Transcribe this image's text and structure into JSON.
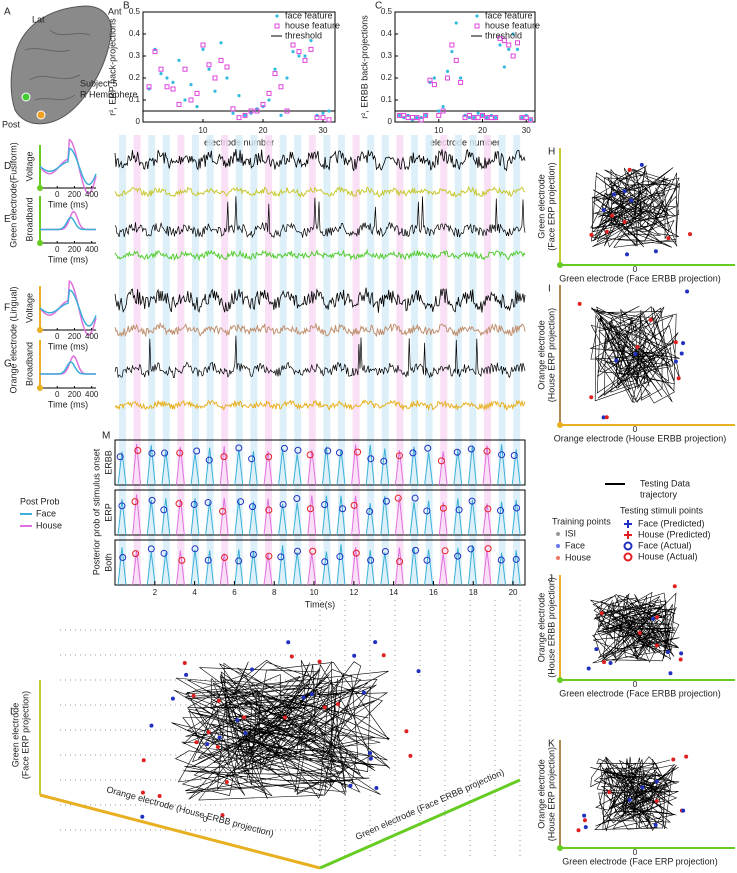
{
  "chart_data": [
    {
      "type": "scatter",
      "letter": "B",
      "ylabel": "r², ERP back-projections",
      "xlabel": "electrode number",
      "xlim": [
        0,
        32
      ],
      "xticks": [
        10,
        20,
        30
      ],
      "ylim": [
        0,
        0.5
      ],
      "yticks": [
        0,
        0.1,
        0.2,
        0.3,
        0.4,
        0.5
      ],
      "x": [
        1,
        2,
        3,
        4,
        5,
        6,
        7,
        8,
        9,
        10,
        11,
        12,
        13,
        14,
        15,
        16,
        17,
        18,
        19,
        20,
        21,
        22,
        23,
        24,
        25,
        26,
        27,
        28,
        29,
        30,
        31
      ],
      "series": [
        {
          "name": "face feature",
          "color": "#33bbdd",
          "marker": "circle",
          "values": [
            0.15,
            0.33,
            0.22,
            0.2,
            0.18,
            0.28,
            0.1,
            0.17,
            0.07,
            0.33,
            0.24,
            0.14,
            0.36,
            0.2,
            0.04,
            0.12,
            0.03,
            0.04,
            0.06,
            0.07,
            0.1,
            0.24,
            0.03,
            0.2,
            0.32,
            0.3,
            0.3,
            0.37,
            0.03,
            0.04,
            0.05
          ]
        },
        {
          "name": "house feature",
          "color": "#dd44dd",
          "marker": "square",
          "values": [
            0.16,
            0.32,
            0.24,
            0.16,
            0.15,
            0.08,
            0.24,
            0.1,
            0.13,
            0.35,
            0.26,
            0.2,
            0.28,
            0.25,
            0.06,
            0.02,
            0.03,
            0.05,
            0.05,
            0.08,
            0.13,
            0.22,
            0.16,
            0.05,
            0.35,
            0.32,
            0.28,
            0.33,
            0.02,
            0.02,
            0.01
          ]
        }
      ],
      "threshold": {
        "name": "threshold",
        "value": 0.05,
        "color": "#000000"
      }
    },
    {
      "type": "scatter",
      "letter": "C",
      "ylabel": "r², ERBB back-projections",
      "xlabel": "electrode number",
      "xlim": [
        0,
        32
      ],
      "xticks": [
        10,
        20,
        30
      ],
      "ylim": [
        0,
        0.5
      ],
      "yticks": [
        0,
        0.1,
        0.2,
        0.3,
        0.4,
        0.5
      ],
      "x": [
        1,
        2,
        3,
        4,
        5,
        6,
        7,
        8,
        9,
        10,
        11,
        12,
        13,
        14,
        15,
        16,
        17,
        18,
        19,
        20,
        21,
        22,
        23,
        24,
        25,
        26,
        27,
        28,
        29,
        30,
        31
      ],
      "series": [
        {
          "name": "face feature",
          "color": "#33bbdd",
          "marker": "circle",
          "values": [
            0.03,
            0.02,
            0.03,
            0.01,
            0.02,
            0.02,
            0.03,
            0.18,
            0.2,
            0.05,
            0.07,
            0.23,
            0.32,
            0.45,
            0.2,
            0.03,
            0.02,
            0.02,
            0.04,
            0.03,
            0.02,
            0.03,
            0.02,
            0.35,
            0.25,
            0.33,
            0.4,
            0.33,
            0.02,
            0.03,
            0.01
          ]
        },
        {
          "name": "house feature",
          "color": "#dd44dd",
          "marker": "square",
          "values": [
            0.03,
            0.03,
            0.02,
            0.02,
            0.02,
            0.01,
            0.03,
            0.19,
            0.17,
            0.03,
            0.05,
            0.2,
            0.35,
            0.28,
            0.18,
            0.02,
            0.03,
            0.02,
            0.02,
            0.03,
            0.02,
            0.02,
            0.02,
            0.38,
            0.37,
            0.35,
            0.3,
            0.36,
            0.02,
            0.02,
            0.01
          ]
        }
      ],
      "threshold": {
        "name": "threshold",
        "value": 0.05,
        "color": "#000000"
      }
    }
  ],
  "figure": {
    "brain": {
      "letter": "A",
      "lat": "Lat",
      "ant": "Ant",
      "subject": "Subject 5",
      "hemisphere": "R Hemisphere",
      "post": "Post"
    },
    "erp_panels": {
      "xlim": [
        -200,
        450
      ],
      "xticks": [
        0,
        200,
        400
      ],
      "xlabel": "Time (ms)",
      "green": "Green electrode(Fusiform)",
      "orange": "Orange electrode (Lingual)",
      "panels": [
        {
          "letter": "D",
          "ylabel": "Voltage"
        },
        {
          "letter": "E",
          "ylabel": "Broadband"
        },
        {
          "letter": "F",
          "ylabel": "Voltage"
        },
        {
          "letter": "G",
          "ylabel": "Broadband"
        }
      ]
    },
    "posterior": {
      "letter": "M",
      "rows": [
        "ERBB",
        "ERP",
        "Both"
      ],
      "ylabel": "Posterior prob of stimulus onset",
      "xlabel": "Time(s)",
      "xlim": [
        0,
        20.6
      ],
      "xticks": [
        2,
        4,
        6,
        8,
        10,
        12,
        14,
        16,
        18,
        20
      ],
      "legend_title": "Post Prob",
      "legend": [
        {
          "name": "Face",
          "color": "#3ab0d8"
        },
        {
          "name": "House",
          "color": "#e070e0"
        }
      ]
    },
    "training_legend": {
      "title": "Training points",
      "items": [
        {
          "name": "ISI",
          "color": "#999999"
        },
        {
          "name": "Face",
          "color": "#6677ee"
        },
        {
          "name": "House",
          "color": "#ee7766"
        }
      ]
    },
    "testing_legend": {
      "trajectory": [
        "Testing Data",
        "trajectory"
      ],
      "title": "Testing stimuli points",
      "items": [
        "Face (Predicted)",
        "House (Predicted)",
        "Face (Actual)",
        "House (Actual)"
      ]
    },
    "projections": [
      {
        "letter": "H",
        "ylabel": [
          "Green electrode",
          "(Face ERP projection)"
        ],
        "xlabel": "Green electrode (Face ERBB projection)",
        "tick": 0
      },
      {
        "letter": "I",
        "ylabel": [
          "Orange electrode",
          "(House ERP projection)"
        ],
        "xlabel": "Orange electrode (House ERBB projection)",
        "tick": 0
      },
      {
        "letter": "J",
        "ylabel": [
          "Orange electrode",
          "(House ERBB projection)"
        ],
        "xlabel": "Green electrode (Face ERBB projection)",
        "tick": 0
      },
      {
        "letter": "K",
        "ylabel": [
          "Orange electrode",
          "(House ERP projection)"
        ],
        "xlabel": "Green electrode (Face ERP projection)",
        "tick": 0
      }
    ],
    "cube": {
      "letter": "L",
      "zlabel": [
        "Green electrode",
        "(Face ERP projection)"
      ],
      "xlabel": "Orange electrode (House ERBB projection)",
      "ylabel": "Green electrode (Face ERBB projection)",
      "tick": 0
    }
  }
}
